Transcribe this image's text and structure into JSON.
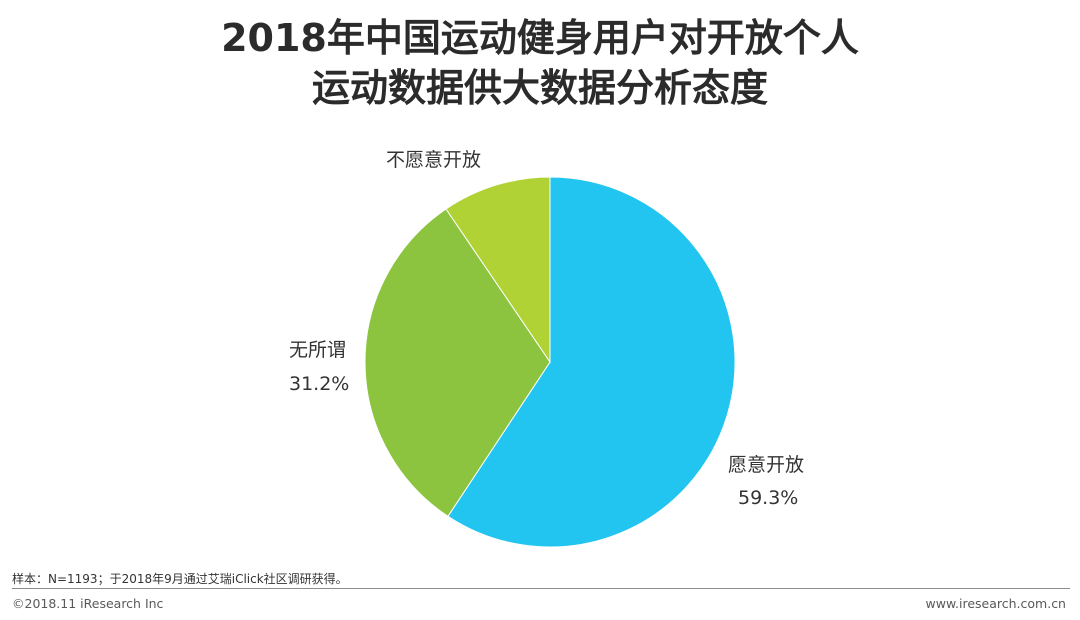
{
  "chart_data": {
    "type": "pie",
    "title": [
      "2018年中国运动健身用户对开放个人",
      "运动数据供大数据分析态度"
    ],
    "slices": [
      {
        "label": "愿意开放",
        "value": 59.3,
        "value_label": "59.3%",
        "color": "#22c4f0"
      },
      {
        "label": "无所谓",
        "value": 31.2,
        "value_label": "31.2%",
        "color": "#8cc43f"
      },
      {
        "label": "不愿意开放",
        "value": 9.5,
        "value_label": "",
        "color": "#b0d235"
      }
    ]
  },
  "footer": {
    "note": "样本：N=1193；于2018年9月通过艾瑞iClick社区调研获得。",
    "copyright": "©2018.11 iResearch Inc",
    "website": "www.iresearch.com.cn"
  }
}
